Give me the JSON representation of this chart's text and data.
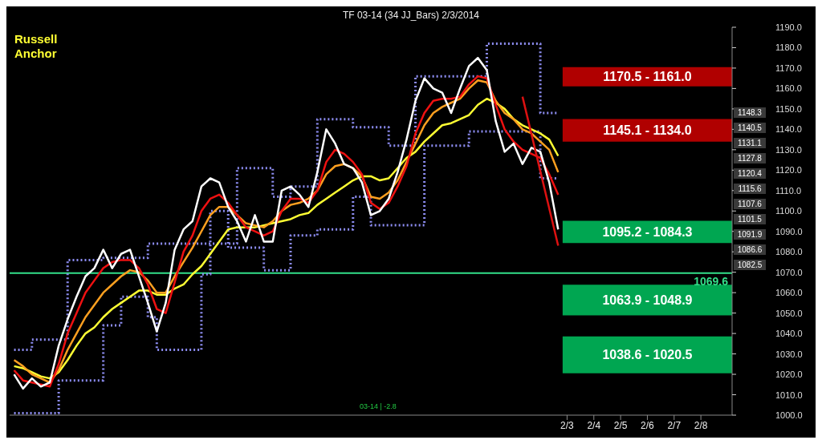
{
  "chart_data": {
    "type": "line",
    "title": "TF 03-14 (34 JJ_Bars)  2/3/2014",
    "categories": [
      null,
      null,
      null,
      null,
      null,
      null,
      null,
      null,
      null,
      null,
      null,
      null,
      null,
      null,
      null,
      null,
      null,
      null,
      null,
      null,
      null,
      null,
      null,
      null,
      null,
      null,
      null,
      null,
      null,
      null,
      null,
      null,
      null,
      null,
      null,
      null,
      null,
      null,
      null,
      null,
      null,
      null,
      null,
      null,
      null,
      null,
      null,
      null,
      null,
      null,
      null,
      null,
      null,
      null,
      null,
      null,
      null,
      null,
      null,
      null,
      null,
      null,
      "2/3",
      null,
      null,
      "2/4",
      null,
      null,
      "2/5",
      null,
      null,
      "2/6",
      null,
      null,
      "2/7",
      null,
      null,
      "2/8",
      null,
      null,
      null
    ],
    "series": [
      {
        "type": "step",
        "color": "#8c8cf0",
        "line_style": "dotted",
        "values": [
          1032,
          1032,
          1037,
          1037,
          1037,
          1037,
          1076,
          1076,
          1076,
          1076,
          1077,
          1077,
          1077,
          1077,
          1077,
          1084,
          1084,
          1084,
          1084,
          1084,
          1084,
          1084,
          1084,
          1084,
          1084,
          1121,
          1121,
          1121,
          1121,
          1107,
          1107,
          1112,
          1112,
          1112,
          1145,
          1145,
          1145,
          1145,
          1141,
          1141,
          1141,
          1141,
          1132,
          1132,
          1132,
          1166,
          1166,
          1166,
          1166,
          1166,
          1166,
          1166,
          1166,
          1182,
          1182,
          1182,
          1182,
          1182,
          1182,
          1148,
          1148,
          1148,
          null,
          null,
          null,
          null,
          null,
          null,
          null,
          null,
          null,
          null,
          null,
          null,
          null,
          null,
          null,
          null,
          null,
          null,
          null
        ]
      },
      {
        "type": "step",
        "color": "#8c8cf0",
        "line_style": "dotted",
        "values": [
          1001,
          1001,
          1001,
          1001,
          1001,
          1017,
          1017,
          1017,
          1017,
          1017,
          1044,
          1044,
          1058,
          1058,
          1058,
          1048,
          1032,
          1032,
          1032,
          1032,
          1032,
          1069,
          1100,
          1100,
          1082,
          1082,
          1082,
          1082,
          1071,
          1071,
          1071,
          1088,
          1088,
          1088,
          1091,
          1091,
          1091,
          1091,
          1107,
          1107,
          1093,
          1093,
          1093,
          1093,
          1093,
          1093,
          1132,
          1132,
          1132,
          1132,
          1132,
          1139,
          1139,
          1139,
          1139,
          1139,
          1139,
          1139,
          1139,
          1116,
          1116,
          1116,
          null,
          null,
          null,
          null,
          null,
          null,
          null,
          null,
          null,
          null,
          null,
          null,
          null,
          null,
          null,
          null,
          null,
          null,
          null
        ]
      },
      {
        "color": "#ffff33",
        "values": [
          1024,
          1023,
          1021,
          1019,
          1018,
          1021,
          1027,
          1034,
          1040,
          1043,
          1048,
          1052,
          1055,
          1058,
          1061,
          1061,
          1059,
          1059,
          1062,
          1064,
          1069,
          1073,
          1079,
          1085,
          1091,
          1092,
          1092,
          1092,
          1093,
          1094,
          1095,
          1096,
          1098,
          1099,
          1103,
          1106,
          1109,
          1112,
          1115,
          1117,
          1117,
          1115,
          1116,
          1121,
          1126,
          1129,
          1134,
          1138,
          1142,
          1143,
          1145,
          1147,
          1152,
          1155,
          1153,
          1150,
          1145,
          1142,
          1140,
          1138,
          1135,
          1127,
          null,
          null,
          null,
          null,
          null,
          null,
          null,
          null,
          null,
          null,
          null,
          null,
          null,
          null,
          null,
          null,
          null,
          null,
          null
        ]
      },
      {
        "color": "#ffa020",
        "values": [
          1027,
          1024,
          1020,
          1018,
          1016,
          1022,
          1032,
          1040,
          1048,
          1054,
          1060,
          1064,
          1068,
          1071,
          1070,
          1066,
          1060,
          1060,
          1068,
          1075,
          1082,
          1090,
          1098,
          1102,
          1102,
          1098,
          1094,
          1093,
          1092,
          1095,
          1100,
          1103,
          1104,
          1106,
          1110,
          1118,
          1122,
          1123,
          1121,
          1117,
          1107,
          1106,
          1109,
          1115,
          1124,
          1133,
          1142,
          1148,
          1151,
          1153,
          1155,
          1160,
          1164,
          1163,
          1154,
          1148,
          1145,
          1140,
          1138,
          1134,
          1130,
          1119,
          null,
          null,
          null,
          null,
          null,
          null,
          null,
          null,
          null,
          null,
          null,
          null,
          null,
          null,
          null,
          null,
          null,
          null,
          null
        ]
      },
      {
        "color": "#ee1111",
        "values": [
          1022,
          1017,
          1016,
          1015,
          1014,
          1025,
          1040,
          1050,
          1060,
          1066,
          1072,
          1075,
          1076,
          1076,
          1072,
          1064,
          1052,
          1050,
          1065,
          1080,
          1088,
          1100,
          1106,
          1108,
          1104,
          1098,
          1092,
          1090,
          1088,
          1090,
          1100,
          1106,
          1106,
          1104,
          1110,
          1124,
          1130,
          1128,
          1124,
          1118,
          1104,
          1101,
          1104,
          1112,
          1122,
          1138,
          1148,
          1154,
          1155,
          1155,
          1156,
          1162,
          1166,
          1165,
          1152,
          1140,
          1134,
          1130,
          1128,
          1126,
          1118,
          1108,
          null,
          null,
          null,
          null,
          null,
          null,
          null,
          null,
          null,
          null,
          null,
          null,
          null,
          null,
          null,
          null,
          null,
          null,
          null
        ]
      },
      {
        "color": "#ffffff",
        "values": [
          1020,
          1013,
          1018,
          1014,
          1016,
          1034,
          1047,
          1058,
          1068,
          1072,
          1081,
          1072,
          1079,
          1081,
          1068,
          1055,
          1041,
          1055,
          1081,
          1091,
          1095,
          1112,
          1116,
          1114,
          1102,
          1095,
          1085,
          1098,
          1085,
          1085,
          1110,
          1112,
          1108,
          1102,
          1119,
          1140,
          1133,
          1123,
          1121,
          1114,
          1098,
          1100,
          1106,
          1119,
          1135,
          1154,
          1165,
          1160,
          1158,
          1148,
          1160,
          1171,
          1175,
          1169,
          1144,
          1129,
          1133,
          1123,
          1131,
          1129,
          1114,
          1091,
          null,
          null,
          null,
          null,
          null,
          null,
          null,
          null,
          null,
          null,
          null,
          null,
          null,
          null,
          null,
          null,
          null,
          null,
          null
        ]
      },
      {
        "color": "#dd1111",
        "values": [
          null,
          null,
          null,
          null,
          null,
          null,
          null,
          null,
          null,
          null,
          null,
          null,
          null,
          null,
          null,
          null,
          null,
          null,
          null,
          null,
          null,
          null,
          null,
          null,
          null,
          null,
          null,
          null,
          null,
          null,
          null,
          null,
          null,
          null,
          null,
          null,
          null,
          null,
          null,
          null,
          null,
          null,
          null,
          null,
          null,
          null,
          null,
          null,
          null,
          null,
          null,
          null,
          null,
          null,
          null,
          null,
          null,
          1156,
          null,
          null,
          null,
          1083,
          null,
          null,
          null,
          null,
          null,
          null,
          null,
          null,
          null,
          null,
          null,
          null,
          null,
          null,
          null,
          null,
          null,
          null,
          null
        ]
      }
    ],
    "ylim": [
      1000,
      1190
    ],
    "yticks": [
      {
        "value": 1000,
        "label": "1000.0"
      },
      {
        "value": 1010,
        "label": "1010.0"
      },
      {
        "value": 1020,
        "label": "1020.0"
      },
      {
        "value": 1030,
        "label": "1030.0"
      },
      {
        "value": 1040,
        "label": "1040.0"
      },
      {
        "value": 1050,
        "label": "1050.0"
      },
      {
        "value": 1060,
        "label": "1060.0"
      },
      {
        "value": 1070,
        "label": "1070.0"
      },
      {
        "value": 1080,
        "label": "1080.0"
      },
      {
        "value": 1090,
        "label": "1090.0"
      },
      {
        "value": 1100,
        "label": "1100.0"
      },
      {
        "value": 1110,
        "label": "1110.0"
      },
      {
        "value": 1120,
        "label": "1120.0"
      },
      {
        "value": 1130,
        "label": "1130.0"
      },
      {
        "value": 1140,
        "label": "1140.0"
      },
      {
        "value": 1150,
        "label": "1150.0"
      },
      {
        "value": 1160,
        "label": "1160.0"
      },
      {
        "value": 1170,
        "label": "1170.0"
      },
      {
        "value": 1180,
        "label": "1180.0"
      },
      {
        "value": 1190,
        "label": "1190.0"
      }
    ],
    "bands": [
      {
        "axis": "y",
        "from": 1161.0,
        "to": 1170.5,
        "label": "1170.5 - 1161.0",
        "color": "#b00000"
      },
      {
        "axis": "y",
        "from": 1134.0,
        "to": 1145.1,
        "label": "1145.1 - 1134.0",
        "color": "#b00000"
      },
      {
        "axis": "y",
        "from": 1084.3,
        "to": 1095.2,
        "label": "1095.2 - 1084.3",
        "color": "#00a651"
      },
      {
        "axis": "y",
        "from": 1048.9,
        "to": 1063.9,
        "label": "1063.9 - 1048.9",
        "color": "#00a651"
      },
      {
        "axis": "y",
        "from": 1020.5,
        "to": 1038.6,
        "label": "1038.6 - 1020.5",
        "color": "#00a651"
      }
    ],
    "ref_lines": [
      {
        "axis": "y",
        "value": 1069.6,
        "label": "1069.6",
        "color": "#33e08a"
      }
    ],
    "annotations": [
      "Russell Anchor",
      "03-14 | -2.8",
      "1148.3",
      "1140.5",
      "1131.1",
      "1127.8",
      "1120.4",
      "1115.6",
      "1107.6",
      "1101.5",
      "1091.9",
      "1086.6",
      "1082.5"
    ],
    "grid": false
  }
}
